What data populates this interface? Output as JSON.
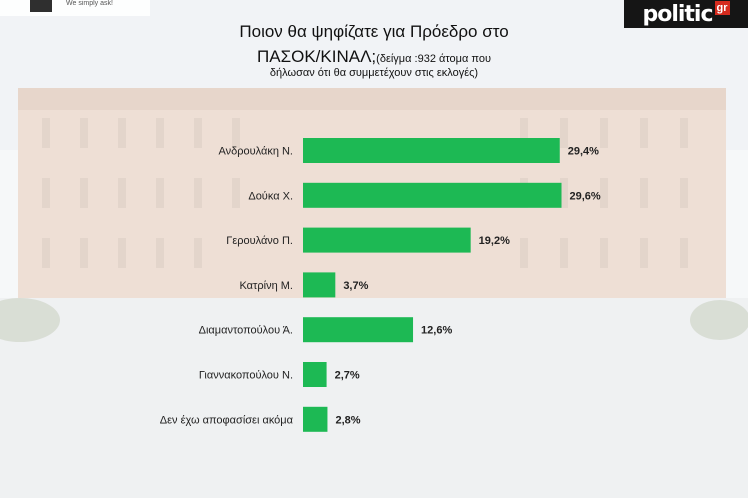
{
  "branding": {
    "left_tagline": "We simply ask!",
    "right_logo_word": "politic",
    "right_logo_suffix": "gr"
  },
  "title": {
    "line1": "Ποιον θα ψηφίζατε για Πρόεδρο στο",
    "line2_main": "ΠΑΣΟΚ/ΚΙΝΑΛ;",
    "line2_sample": "(δείγμα :932 άτομα που",
    "line3": "δήλωσαν ότι θα συμμετέχουν στις εκλογές)"
  },
  "colors": {
    "bar": "#1db954",
    "text": "#222222"
  },
  "chart_data": {
    "type": "bar",
    "orientation": "horizontal",
    "categories": [
      "Ανδρουλάκη Ν.",
      "Δούκα Χ.",
      "Γερουλάνο Π.",
      "Κατρίνη Μ.",
      "Διαμαντοπούλου Ά.",
      "Γιαννακοπούλου Ν.",
      "Δεν έχω αποφασίσει ακόμα"
    ],
    "values": [
      29.4,
      29.6,
      19.2,
      3.7,
      12.6,
      2.7,
      2.8
    ],
    "value_labels": [
      "29,4%",
      "29,6%",
      "19,2%",
      "3,7%",
      "12,6%",
      "2,7%",
      "2,8%"
    ],
    "xlim": [
      0,
      30
    ],
    "grid": false,
    "legend": false
  }
}
